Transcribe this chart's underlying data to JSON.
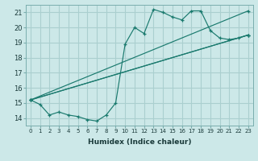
{
  "xlabel": "Humidex (Indice chaleur)",
  "xlim": [
    -0.5,
    23.5
  ],
  "ylim": [
    13.5,
    21.5
  ],
  "xticks": [
    0,
    1,
    2,
    3,
    4,
    5,
    6,
    7,
    8,
    9,
    10,
    11,
    12,
    13,
    14,
    15,
    16,
    17,
    18,
    19,
    20,
    21,
    22,
    23
  ],
  "yticks": [
    14,
    15,
    16,
    17,
    18,
    19,
    20,
    21
  ],
  "bg_color": "#cce8e8",
  "grid_color": "#aacfcf",
  "line_color": "#1a7a6e",
  "series": [
    {
      "x": [
        0,
        1,
        2,
        3,
        4,
        5,
        6,
        7,
        8,
        9,
        10,
        11,
        12,
        13,
        14,
        15,
        16,
        17,
        18,
        19,
        20,
        21,
        22,
        23
      ],
      "y": [
        15.2,
        14.9,
        14.2,
        14.4,
        14.2,
        14.1,
        13.9,
        13.8,
        14.2,
        15.0,
        18.9,
        20.0,
        19.6,
        21.2,
        21.0,
        20.7,
        20.5,
        21.1,
        21.1,
        19.8,
        19.3,
        19.2,
        19.3,
        19.5
      ]
    },
    {
      "x": [
        0,
        23
      ],
      "y": [
        15.2,
        19.5
      ]
    },
    {
      "x": [
        0,
        23
      ],
      "y": [
        15.2,
        21.1
      ]
    },
    {
      "x": [
        0,
        23
      ],
      "y": [
        15.2,
        19.5
      ]
    }
  ]
}
